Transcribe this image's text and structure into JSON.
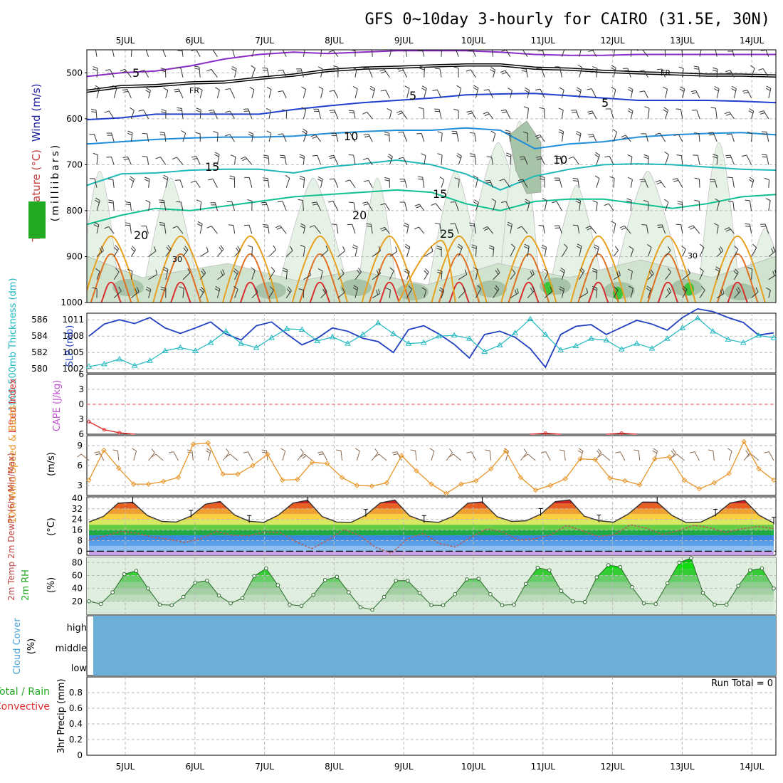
{
  "page": {
    "title": "GFS 0~10day 3-hourly for CAIRO (31.5E, 30N)"
  },
  "days": [
    "5JUL",
    "6JUL",
    "7JUL",
    "8JUL",
    "9JUL",
    "10JUL",
    "11JUL",
    "12JUL",
    "13JUL",
    "14JUL"
  ],
  "colors": {
    "grid": "#bbbbbb",
    "slp": "#1f3fbf",
    "thickness": "#20b8c0",
    "wind_speed": "#e8962a",
    "barbs": "#8b6a50",
    "temp": "#333333",
    "dewpt": "#b06060",
    "rh": "#22aa22",
    "cloud": "#6baed6",
    "lifted": "#e03030",
    "rh_green": "#9ed29e"
  },
  "chart_data": [
    {
      "type": "line",
      "name": "upper-air",
      "ylabel_parts": [
        "RH (%)",
        "Temperature (°C)",
        "Wind (m/s)"
      ],
      "ylabel_units": "(milliibars)",
      "yticks": [
        500,
        600,
        700,
        800,
        900,
        1000
      ],
      "ylim": [
        450,
        1000
      ],
      "contour_labels": [
        "5",
        "FR",
        "FR",
        "5",
        "5",
        "10",
        "10",
        "15",
        "15",
        "20",
        "20",
        "25",
        "30",
        "30"
      ],
      "isotherms": [
        {
          "label": "-5",
          "color": "#8a2bc8",
          "p": [
            508,
            500,
            496,
            485,
            470,
            460,
            455,
            458,
            455,
            452,
            452,
            452,
            455,
            460,
            462,
            462,
            460,
            460,
            460,
            460,
            460
          ]
        },
        {
          "label": "FR",
          "color": "#000000",
          "p": [
            540,
            530,
            528,
            522,
            520,
            512,
            505,
            495,
            490,
            488,
            485,
            483,
            483,
            490,
            492,
            497,
            500,
            502,
            505,
            505,
            507
          ]
        },
        {
          "label": "5",
          "color": "#2040d0",
          "p": [
            602,
            598,
            590,
            590,
            590,
            590,
            580,
            572,
            565,
            560,
            555,
            548,
            546,
            545,
            550,
            555,
            560,
            560,
            560,
            562,
            565
          ]
        },
        {
          "label": "10",
          "color": "#1e8fd8",
          "p": [
            655,
            650,
            645,
            642,
            640,
            640,
            638,
            632,
            628,
            625,
            625,
            620,
            625,
            665,
            655,
            650,
            640,
            635,
            632,
            630,
            635
          ]
        },
        {
          "label": "15",
          "color": "#20b8b8",
          "p": [
            745,
            720,
            718,
            712,
            710,
            710,
            718,
            705,
            698,
            690,
            700,
            720,
            755,
            725,
            710,
            700,
            698,
            700,
            705,
            710,
            712
          ]
        },
        {
          "label": "20",
          "color": "#10c090",
          "p": [
            830,
            810,
            795,
            800,
            790,
            780,
            770,
            765,
            760,
            755,
            760,
            785,
            800,
            780,
            775,
            775,
            785,
            795,
            785,
            770,
            765
          ]
        }
      ]
    },
    {
      "type": "line",
      "name": "slp-thickness",
      "left_label": "1000-500mb Thickness (dm)",
      "right_label": "SLP (mb)",
      "yticks_left": [
        580,
        582,
        584,
        586
      ],
      "yticks_right": [
        1002,
        1005,
        1008,
        1011
      ],
      "ylim_left": [
        579.5,
        586.8
      ],
      "series": [
        {
          "name": "SLP (mb)",
          "axis": "right",
          "values": [
            1008.0,
            1010.2,
            1011.0,
            1010.3,
            1011.4,
            1009.5,
            1008.5,
            1009.5,
            1010.6,
            1008.4,
            1007.3,
            1009.9,
            1010.6,
            1008.4,
            1006.4,
            1007.6,
            1009.5,
            1008.9,
            1007.6,
            1007.0,
            1005.0,
            1009.2,
            1009.9,
            1008.4,
            1006.5,
            1004.0,
            1008.3,
            1008.9,
            1007.8,
            1005.7,
            1002.3,
            1008.3,
            1009.8,
            1010.1,
            1008.3,
            1009.6,
            1010.9,
            1010.2,
            1009.1,
            1011.4,
            1013.0,
            1012.5,
            1011.4,
            1010.5,
            1008.2,
            1008.6
          ]
        },
        {
          "name": "1000-500mb Thickness (dm)",
          "axis": "left",
          "values": [
            580.3,
            580.6,
            581.2,
            580.4,
            581.0,
            582.2,
            582.6,
            582.2,
            583.2,
            584.6,
            583.1,
            582.6,
            583.8,
            584.9,
            584.8,
            583.4,
            583.9,
            583.1,
            584.2,
            585.6,
            584.3,
            583.1,
            583.2,
            584.0,
            584.1,
            583.7,
            582.1,
            582.9,
            584.4,
            586.1,
            584.2,
            582.3,
            582.8,
            583.7,
            583.5,
            582.4,
            583.1,
            582.5,
            583.7,
            585.0,
            586.2,
            584.6,
            583.6,
            583.2,
            584.1,
            583.8
          ]
        }
      ]
    },
    {
      "type": "line",
      "name": "lifted-index-cape",
      "left_label": "Lifted Index",
      "right_label": "CAPE (J/kg)",
      "yticks": [
        "-6",
        "-3",
        "0",
        "3",
        "6"
      ],
      "ylim": [
        -6,
        6
      ],
      "series": [
        {
          "name": "Lifted Index",
          "values": [
            3.5,
            5.1,
            5.7,
            6.0,
            6.0,
            6.0,
            6.0,
            6.0,
            6.0,
            6.0,
            6.0,
            6.0,
            6.0,
            6.0,
            6.0,
            6.0,
            6.0,
            6.0,
            6.0,
            6.0,
            6.0,
            6.0,
            6.0,
            6.0,
            6.0,
            6.0,
            6.0,
            6.0,
            6.0,
            6.0,
            5.8,
            6.0,
            6.0,
            6.0,
            6.0,
            5.8,
            6.0,
            6.0,
            6.0,
            6.0,
            6.0,
            6.0,
            6.0,
            6.0,
            6.0,
            6.0
          ]
        }
      ]
    },
    {
      "type": "line",
      "name": "10m-wind",
      "left_label": "10m Wind Speed & Barbs",
      "unit": "(m/s)",
      "yticks": [
        3,
        6,
        9
      ],
      "ylim": [
        1.5,
        10.5
      ],
      "series": [
        {
          "name": "Speed",
          "values": [
            3.8,
            8.3,
            5.6,
            3.2,
            3.2,
            3.6,
            4.2,
            9.2,
            9.4,
            4.7,
            4.7,
            6.0,
            7.7,
            3.8,
            3.9,
            6.5,
            6.3,
            4.2,
            3.0,
            2.9,
            3.4,
            7.5,
            5.2,
            3.2,
            1.8,
            3.2,
            3.7,
            5.5,
            8.2,
            4.2,
            2.3,
            3.0,
            4.0,
            7.0,
            6.9,
            4.1,
            3.7,
            3.1,
            7.0,
            7.3,
            3.8,
            2.5,
            3.4,
            4.8,
            9.6,
            5.5,
            3.8
          ]
        }
      ]
    },
    {
      "type": "area",
      "name": "2m-temperature",
      "left_label": "2m Temp 2m DewPt (6hr Min/Max)",
      "unit": "(°C)",
      "yticks": [
        0,
        8,
        16,
        24,
        32,
        40
      ],
      "ylim": [
        -3,
        41
      ],
      "series": [
        {
          "name": "2m Temp",
          "values": [
            22.0,
            26.3,
            36.2,
            37.0,
            27.0,
            22.5,
            22.0,
            26.5,
            35.4,
            37.5,
            27.3,
            22.6,
            21.8,
            27.2,
            36.3,
            38.4,
            26.2,
            22.0,
            21.8,
            27.2,
            36.5,
            38.6,
            26.7,
            22.6,
            21.8,
            26.4,
            36.2,
            37.2,
            26.1,
            22.5,
            22.9,
            27.9,
            37.4,
            38.7,
            26.4,
            23.0,
            21.9,
            27.9,
            37.1,
            37.0,
            27.1,
            21.6,
            22.0,
            27.3,
            36.4,
            38.5,
            27.1,
            21.3
          ]
        },
        {
          "name": "2m DewPt",
          "values": [
            8.3,
            11.5,
            15.0,
            13.6,
            10.7,
            9.0,
            6.7,
            9.2,
            15.0,
            12.0,
            11.6,
            14.5,
            14.1,
            7.2,
            2.0,
            8.4,
            16.4,
            11.9,
            3.0,
            -1.5,
            9.4,
            13.5,
            5.8,
            3.3,
            10.7,
            16.9,
            14.5,
            8.5,
            9.4,
            12.5,
            19.5,
            15.4,
            11.0,
            12.5,
            20.0,
            17.4,
            12.8,
            15.4,
            19.6,
            17.7,
            14.1,
            16.9,
            18.6,
            17.2
          ]
        }
      ]
    },
    {
      "type": "area",
      "name": "2m-rh",
      "left_label": "2m RH",
      "unit": "(%)",
      "yticks": [
        20,
        40,
        60,
        80
      ],
      "ylim": [
        0,
        88
      ],
      "series": [
        {
          "name": "2m RH",
          "values": [
            20,
            16,
            34,
            62,
            67,
            40,
            15,
            14,
            27,
            49,
            52,
            29,
            17,
            25,
            59,
            71,
            45,
            15,
            13,
            30,
            53,
            58,
            34,
            11,
            7,
            27,
            52,
            52,
            33,
            14,
            14,
            31,
            54,
            55,
            31,
            14,
            15,
            47,
            72,
            68,
            36,
            20,
            19,
            57,
            76,
            73,
            42,
            17,
            16,
            48,
            80,
            87,
            33,
            15,
            15,
            44,
            68,
            71,
            40
          ]
        }
      ]
    },
    {
      "type": "area",
      "name": "cloud-cover",
      "left_label": "Cloud Cover",
      "unit": "(%)",
      "levels": [
        "high",
        "middle",
        "low"
      ]
    },
    {
      "type": "bar",
      "name": "3hr-precip",
      "left_label_a": "Total / Rain",
      "left_label_b": "Convective",
      "ylabel": "3hr Precip (mm)",
      "run_total": "Run Total = 0",
      "yticks": [
        "0",
        "0.2",
        "0.4",
        "0.6",
        "0.8"
      ],
      "ylim": [
        0,
        1
      ],
      "values": []
    }
  ]
}
